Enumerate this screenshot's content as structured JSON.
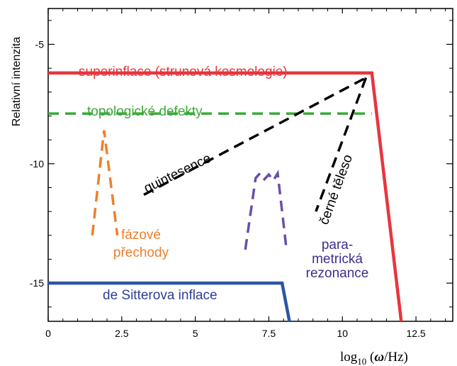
{
  "chart_data": {
    "type": "line",
    "xlabel": "log10 (ω/Hz)",
    "xlabel_parts": {
      "log": "log",
      "sub": "10",
      "rest": " (",
      "omega": "ω",
      "tail": "/Hz)"
    },
    "ylabel": "Relativní intenzita",
    "xlim": [
      0,
      13.75
    ],
    "ylim": [
      -16.6,
      -3.5
    ],
    "xticks": [
      0,
      2.5,
      5,
      7.5,
      10,
      12.5
    ],
    "xtick_labels": [
      "0",
      "2.5",
      "5",
      "7.5",
      "10",
      "12.5"
    ],
    "yticks": [
      -5,
      -10,
      -15
    ],
    "ytick_labels": [
      "-5",
      "-10",
      "-15"
    ],
    "grid": false,
    "series": [
      {
        "name": "superinflace (strunová kosmologie)",
        "color": "#e8353d",
        "style": "solid",
        "points": [
          [
            0,
            -6.2
          ],
          [
            11.0,
            -6.2
          ],
          [
            12.0,
            -16.6
          ]
        ],
        "label_lines": [
          "superinflace (strunová kosmologie)"
        ]
      },
      {
        "name": "topologické defekty",
        "color": "#3aa93a",
        "style": "dashed",
        "points": [
          [
            0,
            -7.9
          ],
          [
            11.0,
            -7.9
          ]
        ],
        "label_lines": [
          "topologické defekty"
        ]
      },
      {
        "name": "quintesence",
        "color": "#000000",
        "style": "dashed",
        "points": [
          [
            3.25,
            -11.3
          ],
          [
            10.8,
            -6.4
          ]
        ],
        "label_lines": [
          "quintesence"
        ]
      },
      {
        "name": "černé těleso",
        "color": "#000000",
        "style": "dashed",
        "points": [
          [
            10.8,
            -6.4
          ],
          [
            9.1,
            -12.0
          ]
        ],
        "label_lines": [
          "černé těleso"
        ]
      },
      {
        "name": "fázové přechody",
        "color": "#ee7f2d",
        "style": "dashed",
        "points": [
          [
            1.5,
            -13.0
          ],
          [
            1.9,
            -8.6
          ],
          [
            2.35,
            -13.0
          ]
        ],
        "label_lines": [
          "fázové",
          "přechody"
        ]
      },
      {
        "name": "parametrická rezonance",
        "color": "#6a4fa8",
        "style": "dashed",
        "points": [
          [
            6.7,
            -13.6
          ],
          [
            7.05,
            -10.6
          ],
          [
            7.2,
            -10.4
          ],
          [
            7.35,
            -10.65
          ],
          [
            7.5,
            -10.45
          ],
          [
            7.65,
            -10.7
          ],
          [
            7.8,
            -10.4
          ],
          [
            8.1,
            -13.6
          ]
        ],
        "label_lines": [
          "para-",
          "metrická",
          "rezonance"
        ]
      },
      {
        "name": "de Sitterova inflace",
        "color": "#2e55a4",
        "style": "solid",
        "points": [
          [
            0,
            -15.0
          ],
          [
            7.95,
            -15.0
          ],
          [
            8.2,
            -16.6
          ]
        ],
        "label_lines": [
          "de Sitterova inflace"
        ]
      }
    ]
  }
}
